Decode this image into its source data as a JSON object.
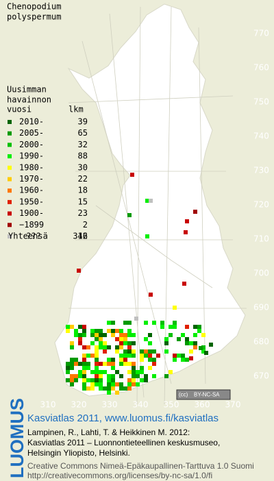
{
  "header": {
    "title_lines": [
      "Chenopodium",
      "polyspermum"
    ]
  },
  "legend": {
    "heading_lines": [
      "Uusimman",
      "havainnon"
    ],
    "col_year": "vuosi",
    "col_count": "lkm",
    "entries": [
      {
        "label": "2010-",
        "count": 39,
        "color": "#006400"
      },
      {
        "label": "2005-",
        "count": 65,
        "color": "#009a00"
      },
      {
        "label": "2000-",
        "count": 32,
        "color": "#00c000"
      },
      {
        "label": "1990-",
        "count": 88,
        "color": "#00ee00"
      },
      {
        "label": "1980-",
        "count": 30,
        "color": "#ffff00"
      },
      {
        "label": "1970-",
        "count": 22,
        "color": "#ffcc00"
      },
      {
        "label": "1960-",
        "count": 18,
        "color": "#ff7700"
      },
      {
        "label": "1950-",
        "count": 15,
        "color": "#e02000"
      },
      {
        "label": "1900-",
        "count": 23,
        "color": "#c80000"
      },
      {
        "label": "−1899",
        "count": 2,
        "color": "#a00000"
      },
      {
        "label": "???",
        "count": 12,
        "color": "#c0c0c0"
      }
    ],
    "total_label": "Yhteensä",
    "total": 346
  },
  "grid": {
    "y_labels": [
      770,
      760,
      750,
      740,
      730,
      720,
      710,
      700,
      690,
      680,
      670
    ],
    "x_labels": [
      310,
      320,
      330,
      340,
      350,
      360,
      370
    ]
  },
  "badge": {
    "cc": "(cc)",
    "license": "BY-NC-SA"
  },
  "footer": {
    "logo": "LUOMUS",
    "title": "Kasviatlas 2011, www.luomus.fi/kasviatlas",
    "citation": [
      "Lampinen, R., Lahti, T. & Heikkinen M. 2012:",
      "Kasviatlas 2011 – Luonnontieteellinen keskusmuseo,",
      "Helsingin Yliopisto, Helsinki."
    ],
    "license_lines": [
      "Creative Commons Nimeä-Epäkaupallinen-Tarttuva 1.0 Suomi",
      "http://creativecommons.org/licenses/by-nc-sa/1.0/fi"
    ]
  }
}
